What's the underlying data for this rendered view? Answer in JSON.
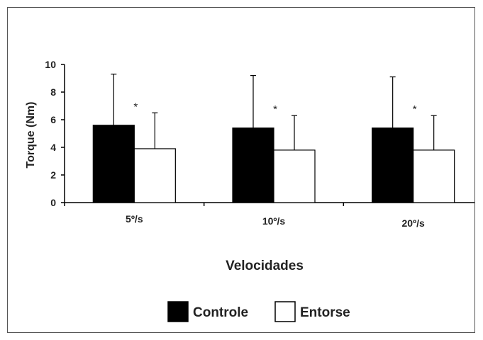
{
  "chart_data": {
    "type": "bar",
    "categories": [
      "5º/s",
      "10º/s",
      "20º/s"
    ],
    "series": [
      {
        "name": "Controle",
        "values": [
          5.6,
          5.4,
          5.4
        ],
        "error": [
          3.7,
          3.8,
          3.7
        ],
        "color": "#000000"
      },
      {
        "name": "Entorse",
        "values": [
          3.9,
          3.8,
          3.8
        ],
        "error": [
          2.6,
          2.5,
          2.5
        ],
        "color": "#ffffff"
      }
    ],
    "annotations": [
      "*",
      "*",
      "*"
    ],
    "xlabel": "Velocidades",
    "ylabel": "Torque (Nm)",
    "ylim": [
      0,
      10
    ],
    "yticks": [
      0,
      2,
      4,
      6,
      8,
      10
    ],
    "grid": false,
    "legend_position": "bottom"
  }
}
